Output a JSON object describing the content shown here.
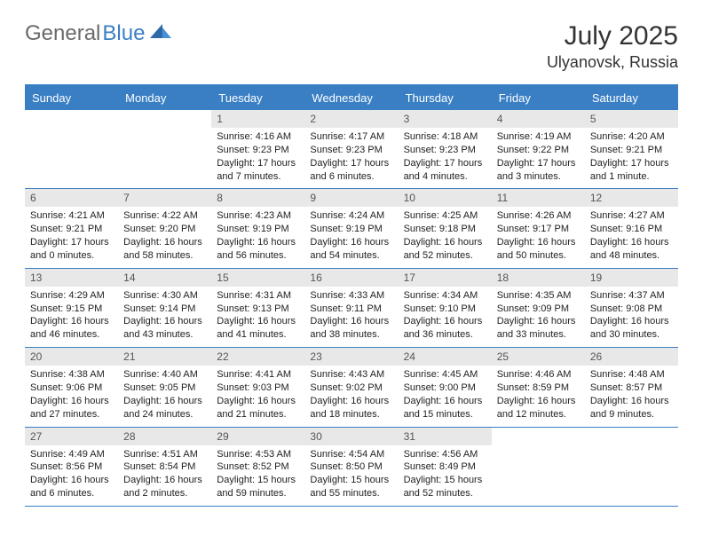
{
  "brand": {
    "part1": "General",
    "part2": "Blue"
  },
  "title": "July 2025",
  "location": "Ulyanovsk, Russia",
  "colors": {
    "accent": "#3a7fc4",
    "gray_bar": "#e8e8e8",
    "text": "#222222",
    "muted": "#555555",
    "background": "#ffffff"
  },
  "typography": {
    "title_fontsize": 30,
    "location_fontsize": 18,
    "dow_fontsize": 13,
    "daynum_fontsize": 12,
    "body_fontsize": 11
  },
  "dow": [
    "Sunday",
    "Monday",
    "Tuesday",
    "Wednesday",
    "Thursday",
    "Friday",
    "Saturday"
  ],
  "weeks": [
    [
      {
        "n": "",
        "sunrise": "",
        "sunset": "",
        "daylight": ""
      },
      {
        "n": "",
        "sunrise": "",
        "sunset": "",
        "daylight": ""
      },
      {
        "n": "1",
        "sunrise": "Sunrise: 4:16 AM",
        "sunset": "Sunset: 9:23 PM",
        "daylight": "Daylight: 17 hours and 7 minutes."
      },
      {
        "n": "2",
        "sunrise": "Sunrise: 4:17 AM",
        "sunset": "Sunset: 9:23 PM",
        "daylight": "Daylight: 17 hours and 6 minutes."
      },
      {
        "n": "3",
        "sunrise": "Sunrise: 4:18 AM",
        "sunset": "Sunset: 9:23 PM",
        "daylight": "Daylight: 17 hours and 4 minutes."
      },
      {
        "n": "4",
        "sunrise": "Sunrise: 4:19 AM",
        "sunset": "Sunset: 9:22 PM",
        "daylight": "Daylight: 17 hours and 3 minutes."
      },
      {
        "n": "5",
        "sunrise": "Sunrise: 4:20 AM",
        "sunset": "Sunset: 9:21 PM",
        "daylight": "Daylight: 17 hours and 1 minute."
      }
    ],
    [
      {
        "n": "6",
        "sunrise": "Sunrise: 4:21 AM",
        "sunset": "Sunset: 9:21 PM",
        "daylight": "Daylight: 17 hours and 0 minutes."
      },
      {
        "n": "7",
        "sunrise": "Sunrise: 4:22 AM",
        "sunset": "Sunset: 9:20 PM",
        "daylight": "Daylight: 16 hours and 58 minutes."
      },
      {
        "n": "8",
        "sunrise": "Sunrise: 4:23 AM",
        "sunset": "Sunset: 9:19 PM",
        "daylight": "Daylight: 16 hours and 56 minutes."
      },
      {
        "n": "9",
        "sunrise": "Sunrise: 4:24 AM",
        "sunset": "Sunset: 9:19 PM",
        "daylight": "Daylight: 16 hours and 54 minutes."
      },
      {
        "n": "10",
        "sunrise": "Sunrise: 4:25 AM",
        "sunset": "Sunset: 9:18 PM",
        "daylight": "Daylight: 16 hours and 52 minutes."
      },
      {
        "n": "11",
        "sunrise": "Sunrise: 4:26 AM",
        "sunset": "Sunset: 9:17 PM",
        "daylight": "Daylight: 16 hours and 50 minutes."
      },
      {
        "n": "12",
        "sunrise": "Sunrise: 4:27 AM",
        "sunset": "Sunset: 9:16 PM",
        "daylight": "Daylight: 16 hours and 48 minutes."
      }
    ],
    [
      {
        "n": "13",
        "sunrise": "Sunrise: 4:29 AM",
        "sunset": "Sunset: 9:15 PM",
        "daylight": "Daylight: 16 hours and 46 minutes."
      },
      {
        "n": "14",
        "sunrise": "Sunrise: 4:30 AM",
        "sunset": "Sunset: 9:14 PM",
        "daylight": "Daylight: 16 hours and 43 minutes."
      },
      {
        "n": "15",
        "sunrise": "Sunrise: 4:31 AM",
        "sunset": "Sunset: 9:13 PM",
        "daylight": "Daylight: 16 hours and 41 minutes."
      },
      {
        "n": "16",
        "sunrise": "Sunrise: 4:33 AM",
        "sunset": "Sunset: 9:11 PM",
        "daylight": "Daylight: 16 hours and 38 minutes."
      },
      {
        "n": "17",
        "sunrise": "Sunrise: 4:34 AM",
        "sunset": "Sunset: 9:10 PM",
        "daylight": "Daylight: 16 hours and 36 minutes."
      },
      {
        "n": "18",
        "sunrise": "Sunrise: 4:35 AM",
        "sunset": "Sunset: 9:09 PM",
        "daylight": "Daylight: 16 hours and 33 minutes."
      },
      {
        "n": "19",
        "sunrise": "Sunrise: 4:37 AM",
        "sunset": "Sunset: 9:08 PM",
        "daylight": "Daylight: 16 hours and 30 minutes."
      }
    ],
    [
      {
        "n": "20",
        "sunrise": "Sunrise: 4:38 AM",
        "sunset": "Sunset: 9:06 PM",
        "daylight": "Daylight: 16 hours and 27 minutes."
      },
      {
        "n": "21",
        "sunrise": "Sunrise: 4:40 AM",
        "sunset": "Sunset: 9:05 PM",
        "daylight": "Daylight: 16 hours and 24 minutes."
      },
      {
        "n": "22",
        "sunrise": "Sunrise: 4:41 AM",
        "sunset": "Sunset: 9:03 PM",
        "daylight": "Daylight: 16 hours and 21 minutes."
      },
      {
        "n": "23",
        "sunrise": "Sunrise: 4:43 AM",
        "sunset": "Sunset: 9:02 PM",
        "daylight": "Daylight: 16 hours and 18 minutes."
      },
      {
        "n": "24",
        "sunrise": "Sunrise: 4:45 AM",
        "sunset": "Sunset: 9:00 PM",
        "daylight": "Daylight: 16 hours and 15 minutes."
      },
      {
        "n": "25",
        "sunrise": "Sunrise: 4:46 AM",
        "sunset": "Sunset: 8:59 PM",
        "daylight": "Daylight: 16 hours and 12 minutes."
      },
      {
        "n": "26",
        "sunrise": "Sunrise: 4:48 AM",
        "sunset": "Sunset: 8:57 PM",
        "daylight": "Daylight: 16 hours and 9 minutes."
      }
    ],
    [
      {
        "n": "27",
        "sunrise": "Sunrise: 4:49 AM",
        "sunset": "Sunset: 8:56 PM",
        "daylight": "Daylight: 16 hours and 6 minutes."
      },
      {
        "n": "28",
        "sunrise": "Sunrise: 4:51 AM",
        "sunset": "Sunset: 8:54 PM",
        "daylight": "Daylight: 16 hours and 2 minutes."
      },
      {
        "n": "29",
        "sunrise": "Sunrise: 4:53 AM",
        "sunset": "Sunset: 8:52 PM",
        "daylight": "Daylight: 15 hours and 59 minutes."
      },
      {
        "n": "30",
        "sunrise": "Sunrise: 4:54 AM",
        "sunset": "Sunset: 8:50 PM",
        "daylight": "Daylight: 15 hours and 55 minutes."
      },
      {
        "n": "31",
        "sunrise": "Sunrise: 4:56 AM",
        "sunset": "Sunset: 8:49 PM",
        "daylight": "Daylight: 15 hours and 52 minutes."
      },
      {
        "n": "",
        "sunrise": "",
        "sunset": "",
        "daylight": ""
      },
      {
        "n": "",
        "sunrise": "",
        "sunset": "",
        "daylight": ""
      }
    ]
  ]
}
